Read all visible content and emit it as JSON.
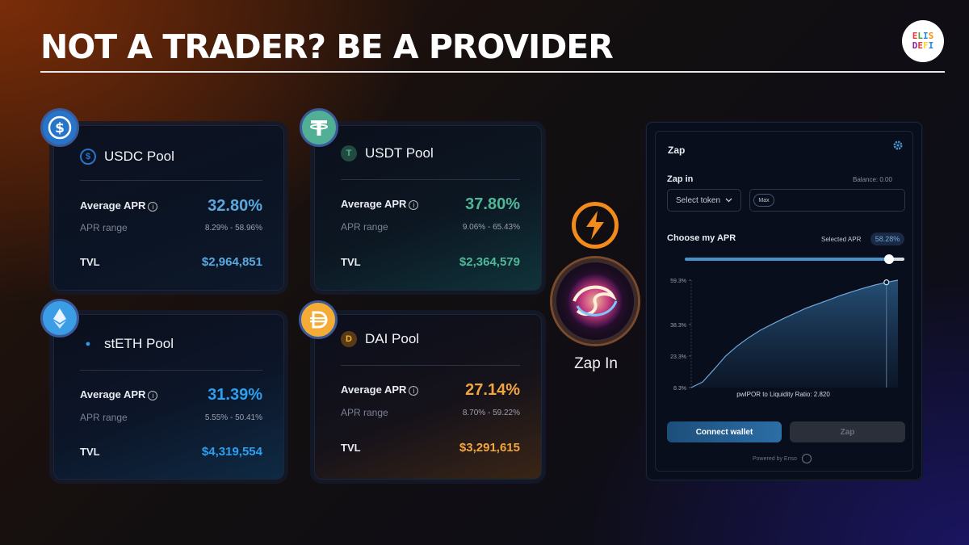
{
  "headline": "NOT A TRADER? BE A PROVIDER",
  "logo": {
    "line1": "ELIS",
    "line2": "DEFI"
  },
  "pools": [
    {
      "name": "USDC Pool",
      "avg_apr_label": "Average APR",
      "avg_apr": "32.80%",
      "range_label": "APR range",
      "range": "8.29% - 58.96%",
      "tvl_label": "TVL",
      "tvl": "$2,964,851",
      "color": "#5aa8e0",
      "icon": "usdc-coin-icon"
    },
    {
      "name": "USDT Pool",
      "avg_apr_label": "Average APR",
      "avg_apr": "37.80%",
      "range_label": "APR range",
      "range": "9.06% - 65.43%",
      "tvl_label": "TVL",
      "tvl": "$2,364,579",
      "color": "#4fb898",
      "icon": "tether-coin-icon"
    },
    {
      "name": "stETH Pool",
      "avg_apr_label": "Average APR",
      "avg_apr": "31.39%",
      "range_label": "APR range",
      "range": "5.55% - 50.41%",
      "tvl_label": "TVL",
      "tvl": "$4,319,554",
      "color": "#2b9ff0",
      "icon": "steth-coin-icon"
    },
    {
      "name": "DAI Pool",
      "avg_apr_label": "Average APR",
      "avg_apr": "27.14%",
      "range_label": "APR range",
      "range": "8.70% - 59.22%",
      "tvl_label": "TVL",
      "tvl": "$3,291,615",
      "color": "#f3a53c",
      "icon": "dai-coin-icon"
    }
  ],
  "zap_center": {
    "label": "Zap In",
    "icon": "lightning-bolt-icon"
  },
  "zap_panel": {
    "title": "Zap",
    "zap_in_label": "Zap in",
    "balance": "Balance: 0.00",
    "select_token": "Select token",
    "max_label": "Max",
    "choose_apr_label": "Choose my APR",
    "selected_apr_label": "Selected APR",
    "selected_apr": "58.28%",
    "slider_fraction": 0.93,
    "ratio_text": "pwIPOR to Liquidity Ratio: 2.820",
    "connect_wallet": "Connect wallet",
    "zap_button": "Zap",
    "powered_by": "Powered by Enso"
  },
  "chart_data": {
    "type": "area",
    "y_ticks": [
      "59.3%",
      "38.3%",
      "23.3%",
      "8.3%"
    ],
    "y_tick_values": [
      59.3,
      38.3,
      23.3,
      8.3
    ],
    "ylim": [
      8.3,
      59.3
    ],
    "series": [
      {
        "values": [
          8.3,
          11,
          17,
          23.3,
          28,
          32,
          35.5,
          38.3,
          41,
          43.5,
          46,
          48,
          50,
          52,
          53.8,
          55.5,
          57,
          58.28,
          59.3
        ]
      }
    ],
    "selected_index": 17,
    "xlabel": "pwIPOR to Liquidity Ratio: 2.820"
  }
}
